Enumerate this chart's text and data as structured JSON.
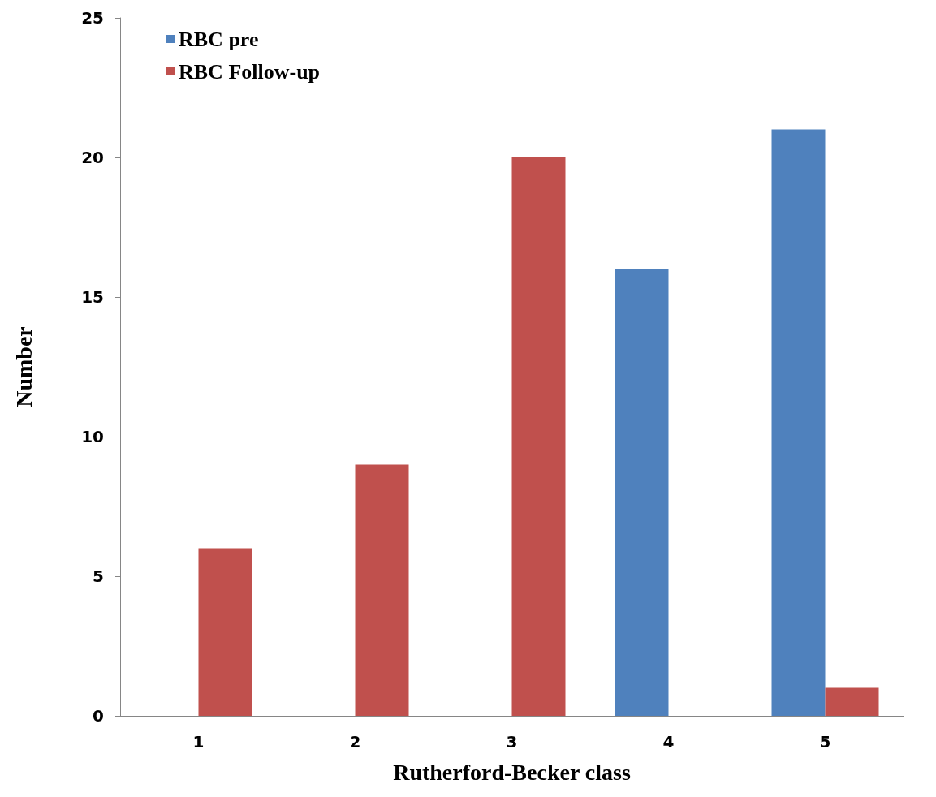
{
  "chart_data": {
    "type": "bar",
    "xlabel": "Rutherford-Becker class",
    "ylabel": "Number",
    "categories": [
      "1",
      "2",
      "3",
      "4",
      "5"
    ],
    "series": [
      {
        "name": "RBC pre",
        "color": "#4f81bd",
        "values": [
          0,
          0,
          0,
          16,
          21
        ]
      },
      {
        "name": "RBC Follow-up",
        "color": "#c0504d",
        "values": [
          6,
          9,
          20,
          0,
          1
        ]
      }
    ],
    "ylim": [
      0,
      25
    ],
    "yticks": [
      0,
      5,
      10,
      15,
      20,
      25
    ],
    "grid": false,
    "legend": "top left"
  }
}
